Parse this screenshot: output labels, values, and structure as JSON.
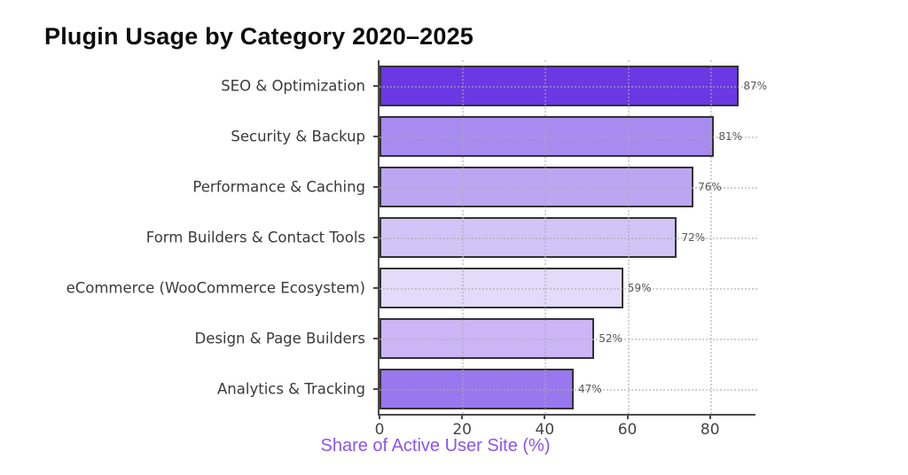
{
  "page": {
    "background": "#ffffff"
  },
  "chart_data": {
    "type": "bar",
    "orientation": "horizontal",
    "title": "Plugin Usage by Category 2020–2025",
    "xlabel": "Share of Active User Site (%)",
    "categories": [
      "SEO & Optimization",
      "Security & Backup",
      "Performance & Caching",
      "Form Builders & Contact Tools",
      "eCommerce (WooCommerce Ecosystem)",
      "Design & Page Builders",
      "Analytics & Tracking"
    ],
    "values": [
      87,
      81,
      76,
      72,
      59,
      52,
      47
    ],
    "value_labels": [
      "87%",
      "81%",
      "76%",
      "72%",
      "59%",
      "52%",
      "47%"
    ],
    "bar_colors": [
      "#6b38e3",
      "#a78bef",
      "#bca6f2",
      "#d2c4f6",
      "#e3dbf9",
      "#cbb5f5",
      "#9977ee"
    ],
    "bar_edge_color": "#333333",
    "x_ticks": [
      0,
      20,
      40,
      60,
      80
    ],
    "x_tick_labels": [
      "0",
      "20",
      "40",
      "60",
      "80"
    ],
    "xlim": [
      0,
      91
    ],
    "grid": "dotted, both axes, drawn over bars",
    "legend": "none",
    "colors": {
      "title": "#0d0d0d",
      "axis": "#4a4a4a",
      "tick_labels": "#444444",
      "category_labels": "#3a3a3a",
      "value_labels": "#595959",
      "xlabel": "#8a55f1",
      "background": "#ffffff"
    }
  }
}
